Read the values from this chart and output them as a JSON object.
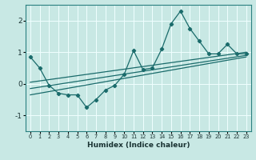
{
  "xlabel": "Humidex (Indice chaleur)",
  "xlim": [
    -0.5,
    23.5
  ],
  "ylim": [
    -1.5,
    2.5
  ],
  "yticks": [
    -1,
    0,
    1,
    2
  ],
  "xticks": [
    0,
    1,
    2,
    3,
    4,
    5,
    6,
    7,
    8,
    9,
    10,
    11,
    12,
    13,
    14,
    15,
    16,
    17,
    18,
    19,
    20,
    21,
    22,
    23
  ],
  "bg_color": "#c8e8e4",
  "grid_color": "#f0ffff",
  "line_color": "#1a6b6b",
  "line1_x": [
    0,
    1,
    2,
    3,
    4,
    5,
    6,
    7,
    8,
    9,
    10,
    11,
    12,
    13,
    14,
    15,
    16,
    17,
    18,
    19,
    20,
    21,
    22,
    23
  ],
  "line1_y": [
    0.85,
    0.5,
    -0.05,
    -0.3,
    -0.35,
    -0.35,
    -0.75,
    -0.5,
    -0.2,
    -0.05,
    0.3,
    1.05,
    0.45,
    0.5,
    1.1,
    1.9,
    2.3,
    1.75,
    1.35,
    0.95,
    0.95,
    1.25,
    0.95,
    0.95
  ],
  "line2_x": [
    0,
    23
  ],
  "line2_y": [
    -0.15,
    0.9
  ],
  "line3_x": [
    0,
    23
  ],
  "line3_y": [
    0.05,
    1.0
  ],
  "line4_x": [
    0,
    23
  ],
  "line4_y": [
    -0.35,
    0.85
  ]
}
